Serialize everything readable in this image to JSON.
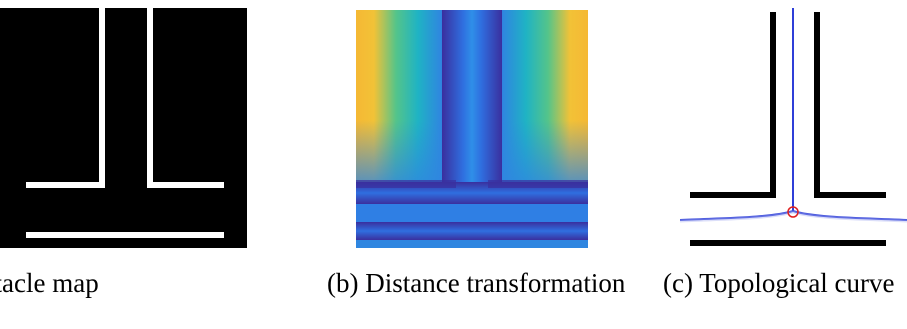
{
  "figure": {
    "panels": [
      {
        "id": "a",
        "caption": "stacle map"
      },
      {
        "id": "b",
        "caption": "(b) Distance transformation"
      },
      {
        "id": "c",
        "caption": "(c) Topological curve"
      }
    ],
    "colors": {
      "obstacle_background": "#000000",
      "free_space": "#ffffff",
      "distance_low": "#3a2f9e",
      "distance_mid": "#2f86e0",
      "distance_high": "#f5b834",
      "curve": "#2f3fd8",
      "junction": "#e02020"
    }
  }
}
